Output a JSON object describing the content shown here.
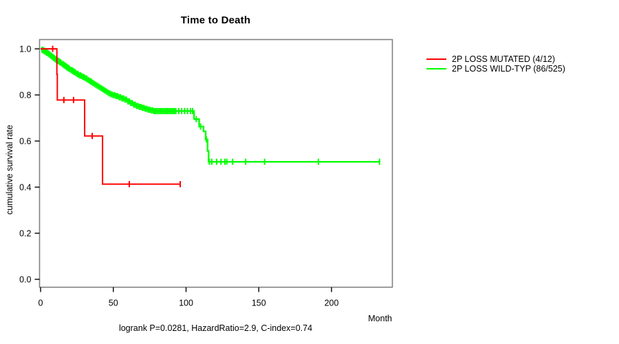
{
  "title": "Time to Death",
  "footnote": "logrank P=0.0281, HazardRatio=2.9, C-index=0.74",
  "y_axis": {
    "label": "cumulative survival rate",
    "ticks": [
      {
        "v": 0.0,
        "label": "0.0"
      },
      {
        "v": 0.2,
        "label": "0.2"
      },
      {
        "v": 0.4,
        "label": "0.4"
      },
      {
        "v": 0.6,
        "label": "0.6"
      },
      {
        "v": 0.8,
        "label": "0.8"
      },
      {
        "v": 1.0,
        "label": "1.0"
      }
    ]
  },
  "x_axis": {
    "label": "Month",
    "ticks": [
      {
        "v": 0,
        "label": "0"
      },
      {
        "v": 50,
        "label": "50"
      },
      {
        "v": 100,
        "label": "100"
      },
      {
        "v": 150,
        "label": "150"
      },
      {
        "v": 200,
        "label": "200"
      }
    ]
  },
  "legend": {
    "items": [
      {
        "label": "2P LOSS MUTATED (4/12)",
        "color": "#ff0000"
      },
      {
        "label": "2P LOSS WILD-TYP (86/525)",
        "color": "#00ff00"
      }
    ]
  },
  "colors": {
    "mutated": "#ff0000",
    "wildtype": "#00ff00",
    "frame": "#808080",
    "axis": "#000000",
    "text": "#000000",
    "background": "#ffffff"
  },
  "chart_data": {
    "type": "line",
    "subtype": "kaplan_meier_step",
    "title": "Time to Death",
    "xlabel": "Month",
    "ylabel": "cumulative survival rate",
    "xlim": [
      0,
      242
    ],
    "ylim": [
      0,
      1.04
    ],
    "x_ticks": [
      0,
      50,
      100,
      150,
      200
    ],
    "y_ticks": [
      0,
      0.2,
      0.4,
      0.6,
      0.8,
      1
    ],
    "grid": false,
    "legend_position": "right-outside",
    "annotation": "logrank P=0.0281, HazardRatio=2.9, C-index=0.74",
    "series": [
      {
        "name": "2P LOSS WILD-TYP (86/525)",
        "color": "#00ff00",
        "line_width": 2.4,
        "end_month": 233,
        "steps": [
          [
            0,
            1
          ],
          [
            1,
            0.996
          ],
          [
            2,
            0.992
          ],
          [
            3,
            0.988
          ],
          [
            4,
            0.984
          ],
          [
            5,
            0.98
          ],
          [
            6,
            0.975
          ],
          [
            7,
            0.97
          ],
          [
            8,
            0.965
          ],
          [
            9,
            0.96
          ],
          [
            10,
            0.955
          ],
          [
            11,
            0.951
          ],
          [
            12,
            0.947
          ],
          [
            13,
            0.943
          ],
          [
            14,
            0.939
          ],
          [
            15,
            0.934
          ],
          [
            16,
            0.929
          ],
          [
            17,
            0.925
          ],
          [
            18,
            0.92
          ],
          [
            19,
            0.916
          ],
          [
            20,
            0.912
          ],
          [
            21,
            0.908
          ],
          [
            22,
            0.904
          ],
          [
            23,
            0.9
          ],
          [
            24,
            0.896
          ],
          [
            25,
            0.892
          ],
          [
            26,
            0.888
          ],
          [
            27,
            0.885
          ],
          [
            28,
            0.882
          ],
          [
            29,
            0.879
          ],
          [
            30,
            0.876
          ],
          [
            31,
            0.872
          ],
          [
            32,
            0.868
          ],
          [
            33,
            0.864
          ],
          [
            34,
            0.86
          ],
          [
            35,
            0.856
          ],
          [
            36,
            0.852
          ],
          [
            37,
            0.848
          ],
          [
            38,
            0.844
          ],
          [
            39,
            0.84
          ],
          [
            40,
            0.836
          ],
          [
            41,
            0.832
          ],
          [
            42,
            0.828
          ],
          [
            43,
            0.824
          ],
          [
            44,
            0.82
          ],
          [
            45,
            0.816
          ],
          [
            46,
            0.812
          ],
          [
            47,
            0.808
          ],
          [
            48,
            0.805
          ],
          [
            49,
            0.802
          ],
          [
            50,
            0.799
          ],
          [
            52,
            0.795
          ],
          [
            54,
            0.79
          ],
          [
            56,
            0.785
          ],
          [
            58,
            0.78
          ],
          [
            60,
            0.772
          ],
          [
            62,
            0.765
          ],
          [
            64,
            0.758
          ],
          [
            66,
            0.752
          ],
          [
            68,
            0.748
          ],
          [
            70,
            0.744
          ],
          [
            72,
            0.74
          ],
          [
            74,
            0.736
          ],
          [
            76,
            0.733
          ],
          [
            78,
            0.73
          ],
          [
            105.5,
            0.695
          ],
          [
            109,
            0.663
          ],
          [
            112,
            0.642
          ],
          [
            113.5,
            0.607
          ],
          [
            114.8,
            0.557
          ],
          [
            115.5,
            0.51
          ]
        ],
        "censor_months": [
          1,
          1.5,
          2,
          2.5,
          3,
          3.5,
          4,
          4.5,
          5,
          5.5,
          6,
          6.5,
          7,
          7.5,
          8,
          8.5,
          9,
          9.5,
          10,
          10.5,
          11,
          11.5,
          12,
          12.5,
          13,
          13.5,
          14,
          15,
          15.5,
          16,
          16.5,
          17,
          17.5,
          18,
          18.5,
          19,
          19.5,
          20,
          21,
          21.5,
          22,
          22.5,
          23,
          23.5,
          24,
          25,
          25.5,
          26,
          27,
          27.5,
          28,
          29,
          29.5,
          30,
          31,
          31.5,
          32,
          33,
          34,
          34.5,
          35,
          36,
          37,
          38,
          39,
          40,
          41,
          42,
          43,
          44,
          45,
          46,
          47,
          48,
          49,
          50,
          51,
          52,
          53,
          54,
          55,
          56,
          57,
          58,
          59,
          60,
          61,
          62,
          63,
          64,
          65,
          66,
          67,
          68,
          69,
          70,
          71,
          72,
          73,
          74,
          75,
          76,
          77,
          78,
          79,
          80,
          81,
          82,
          83,
          84,
          85,
          86,
          87,
          88,
          89,
          90,
          91,
          92,
          93,
          95,
          97,
          99,
          101,
          103,
          104.5,
          107,
          110,
          114,
          116,
          117.7,
          121,
          124,
          126.7,
          128,
          132,
          141,
          154,
          191,
          233
        ]
      },
      {
        "name": "2P LOSS MUTATED (4/12)",
        "color": "#ff0000",
        "line_width": 2,
        "end_month": 96,
        "steps": [
          [
            0,
            1
          ],
          [
            11.2,
            0.889
          ],
          [
            11.5,
            0.778
          ],
          [
            30.3,
            0.622
          ],
          [
            42.6,
            0.413
          ]
        ],
        "censor_months": [
          8.3,
          16,
          22.7,
          35.5,
          61,
          96
        ]
      }
    ]
  }
}
